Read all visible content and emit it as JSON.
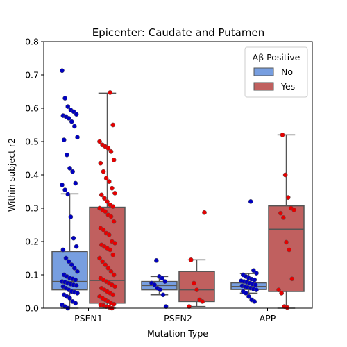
{
  "chart_data": {
    "type": "box",
    "title": "Epicenter: Caudate and Putamen",
    "xlabel": "Mutation Type",
    "ylabel": "Within subject r2",
    "ylim": [
      0,
      0.8
    ],
    "yticks": [
      "0.0",
      "0.1",
      "0.2",
      "0.3",
      "0.4",
      "0.5",
      "0.6",
      "0.7",
      "0.8"
    ],
    "categories": [
      "PSEN1",
      "PSEN2",
      "APP"
    ],
    "legend": {
      "title": "Aβ Positive",
      "placement": "top-right",
      "entries": [
        "No",
        "Yes"
      ]
    },
    "colors": {
      "No_box": "#779ee0",
      "Yes_box": "#c0605f",
      "No_point": "#0000c0",
      "Yes_point": "#e60000",
      "line": "#555555"
    },
    "series": [
      {
        "name": "No",
        "boxes": [
          {
            "category": "PSEN1",
            "whislo": 0.0,
            "q1": 0.055,
            "med": 0.08,
            "q3": 0.17,
            "whishi": 0.343
          },
          {
            "category": "PSEN2",
            "whislo": 0.04,
            "q1": 0.055,
            "med": 0.068,
            "q3": 0.08,
            "whishi": 0.095
          },
          {
            "category": "APP",
            "whislo": 0.045,
            "q1": 0.056,
            "med": 0.065,
            "q3": 0.076,
            "whishi": 0.104
          }
        ],
        "points": [
          {
            "category": "PSEN1",
            "values": [
              0.713,
              0.63,
              0.605,
              0.595,
              0.59,
              0.582,
              0.578,
              0.575,
              0.57,
              0.56,
              0.546,
              0.513,
              0.505,
              0.46,
              0.42,
              0.41,
              0.375,
              0.37,
              0.355,
              0.342,
              0.274,
              0.21,
              0.185,
              0.175,
              0.15,
              0.14,
              0.13,
              0.12,
              0.11,
              0.1,
              0.095,
              0.09,
              0.088,
              0.085,
              0.08,
              0.078,
              0.075,
              0.072,
              0.07,
              0.068,
              0.065,
              0.06,
              0.055,
              0.05,
              0.048,
              0.045,
              0.04,
              0.035,
              0.03,
              0.02,
              0.015,
              0.01,
              0.005,
              0.0
            ]
          },
          {
            "category": "PSEN2",
            "values": [
              0.143,
              0.095,
              0.09,
              0.08,
              0.075,
              0.07,
              0.06,
              0.055,
              0.04,
              0.005
            ]
          },
          {
            "category": "APP",
            "values": [
              0.32,
              0.113,
              0.105,
              0.1,
              0.095,
              0.09,
              0.087,
              0.085,
              0.082,
              0.08,
              0.078,
              0.075,
              0.072,
              0.07,
              0.067,
              0.065,
              0.062,
              0.06,
              0.057,
              0.055,
              0.05,
              0.045,
              0.035,
              0.025,
              0.02
            ]
          }
        ]
      },
      {
        "name": "Yes",
        "boxes": [
          {
            "category": "PSEN1",
            "whislo": 0.0,
            "q1": 0.015,
            "med": 0.083,
            "q3": 0.303,
            "whishi": 0.645
          },
          {
            "category": "PSEN2",
            "whislo": 0.005,
            "q1": 0.02,
            "med": 0.055,
            "q3": 0.11,
            "whishi": 0.145
          },
          {
            "category": "APP",
            "whislo": 0.0,
            "q1": 0.05,
            "med": 0.237,
            "q3": 0.307,
            "whishi": 0.52
          }
        ],
        "points": [
          {
            "category": "PSEN1",
            "values": [
              0.647,
              0.55,
              0.5,
              0.49,
              0.485,
              0.48,
              0.47,
              0.445,
              0.435,
              0.41,
              0.39,
              0.38,
              0.36,
              0.345,
              0.34,
              0.33,
              0.32,
              0.31,
              0.305,
              0.3,
              0.295,
              0.29,
              0.28,
              0.275,
              0.26,
              0.24,
              0.235,
              0.225,
              0.22,
              0.2,
              0.195,
              0.19,
              0.185,
              0.18,
              0.175,
              0.16,
              0.15,
              0.14,
              0.13,
              0.12,
              0.11,
              0.1,
              0.09,
              0.085,
              0.08,
              0.075,
              0.07,
              0.065,
              0.06,
              0.055,
              0.05,
              0.045,
              0.04,
              0.035,
              0.03,
              0.025,
              0.02,
              0.015,
              0.012,
              0.01,
              0.008,
              0.005,
              0.003,
              0.0
            ]
          },
          {
            "category": "PSEN2",
            "values": [
              0.287,
              0.145,
              0.075,
              0.055,
              0.025,
              0.02,
              0.005
            ]
          },
          {
            "category": "APP",
            "values": [
              0.52,
              0.4,
              0.332,
              0.3,
              0.295,
              0.285,
              0.272,
              0.198,
              0.175,
              0.088,
              0.055,
              0.045,
              0.005,
              0.002
            ]
          }
        ]
      }
    ]
  }
}
